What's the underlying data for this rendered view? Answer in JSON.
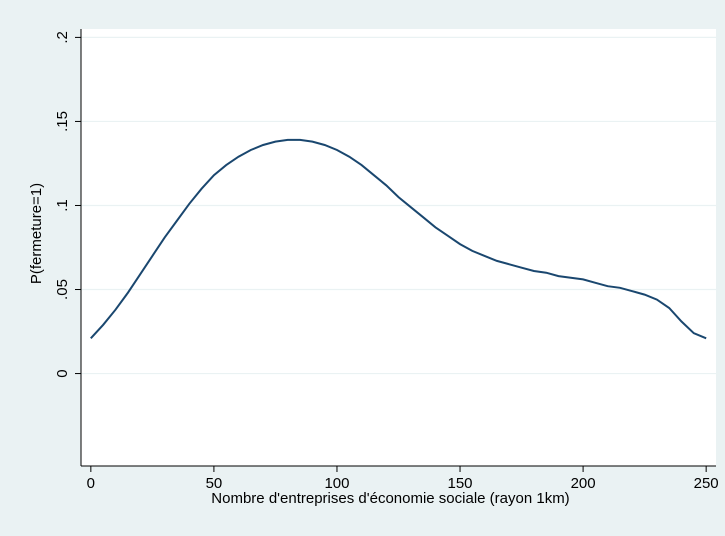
{
  "chart_data": {
    "type": "line",
    "xlabel": "Nombre d'entreprises d'économie sociale (rayon 1km)",
    "ylabel": "P(fermeture=1)",
    "xlim": [
      -4,
      254
    ],
    "ylim": [
      -0.055,
      0.205
    ],
    "x_ticks": [
      0,
      50,
      100,
      150,
      200,
      250
    ],
    "x_tick_labels": [
      "0",
      "50",
      "100",
      "150",
      "200",
      "250"
    ],
    "y_ticks": [
      0,
      0.05,
      0.1,
      0.15,
      0.2
    ],
    "y_tick_labels": [
      "0",
      ".05",
      ".1",
      ".15",
      ".2"
    ],
    "grid": true,
    "colors": {
      "background": "#eaf2f3",
      "plot_background": "#ffffff",
      "line": "#1a476f",
      "grid": "#eaf2f3"
    },
    "series": [
      {
        "x": [
          0,
          5,
          10,
          15,
          20,
          25,
          30,
          35,
          40,
          45,
          50,
          55,
          60,
          65,
          70,
          75,
          80,
          85,
          90,
          95,
          100,
          105,
          110,
          115,
          120,
          125,
          130,
          135,
          140,
          145,
          150,
          155,
          160,
          165,
          170,
          175,
          180,
          185,
          190,
          195,
          200,
          205,
          210,
          215,
          220,
          225,
          230,
          235,
          240,
          245,
          250
        ],
        "y": [
          0.021,
          0.029,
          0.038,
          0.048,
          0.059,
          0.07,
          0.081,
          0.091,
          0.101,
          0.11,
          0.118,
          0.124,
          0.129,
          0.133,
          0.136,
          0.138,
          0.139,
          0.139,
          0.138,
          0.136,
          0.133,
          0.129,
          0.124,
          0.118,
          0.112,
          0.105,
          0.099,
          0.093,
          0.087,
          0.082,
          0.077,
          0.073,
          0.07,
          0.067,
          0.065,
          0.063,
          0.061,
          0.06,
          0.058,
          0.057,
          0.056,
          0.054,
          0.052,
          0.051,
          0.049,
          0.047,
          0.044,
          0.039,
          0.031,
          0.024,
          0.021
        ]
      }
    ]
  }
}
